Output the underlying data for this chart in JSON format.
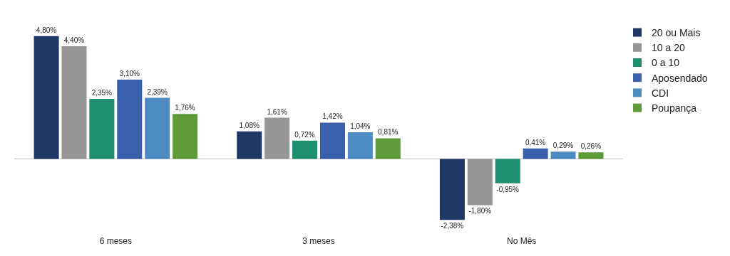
{
  "chart_data": {
    "type": "bar",
    "categories": [
      "6 meses",
      "3 meses",
      "No Mês"
    ],
    "legend": "top right",
    "grid": false,
    "series": [
      {
        "name": "20 ou Mais",
        "color": "#1f3864",
        "values": [
          4.8,
          1.08,
          -2.38
        ],
        "value_labels": [
          "4,80%",
          "1,08%",
          "-2,38%"
        ]
      },
      {
        "name": "10 a 20",
        "color": "#969696",
        "values": [
          4.4,
          1.61,
          -1.8
        ],
        "value_labels": [
          "4,40%",
          "1,61%",
          "-1,80%"
        ]
      },
      {
        "name": "0 a 10",
        "color": "#1f8f6f",
        "values": [
          2.35,
          0.72,
          -0.95
        ],
        "value_labels": [
          "2,35%",
          "0,72%",
          "-0,95%"
        ]
      },
      {
        "name": "Aposendado",
        "color": "#3a5fad",
        "values": [
          3.1,
          1.42,
          0.41
        ],
        "value_labels": [
          "3,10%",
          "1,42%",
          "0,41%"
        ]
      },
      {
        "name": "CDI",
        "color": "#4e8bc2",
        "values": [
          2.39,
          1.04,
          0.29
        ],
        "value_labels": [
          "2,39%",
          "1,04%",
          "0,29%"
        ]
      },
      {
        "name": "Poupança",
        "color": "#5e9a3a",
        "values": [
          1.76,
          0.81,
          0.26
        ],
        "value_labels": [
          "1,76%",
          "0,81%",
          "0,26%"
        ]
      }
    ]
  }
}
